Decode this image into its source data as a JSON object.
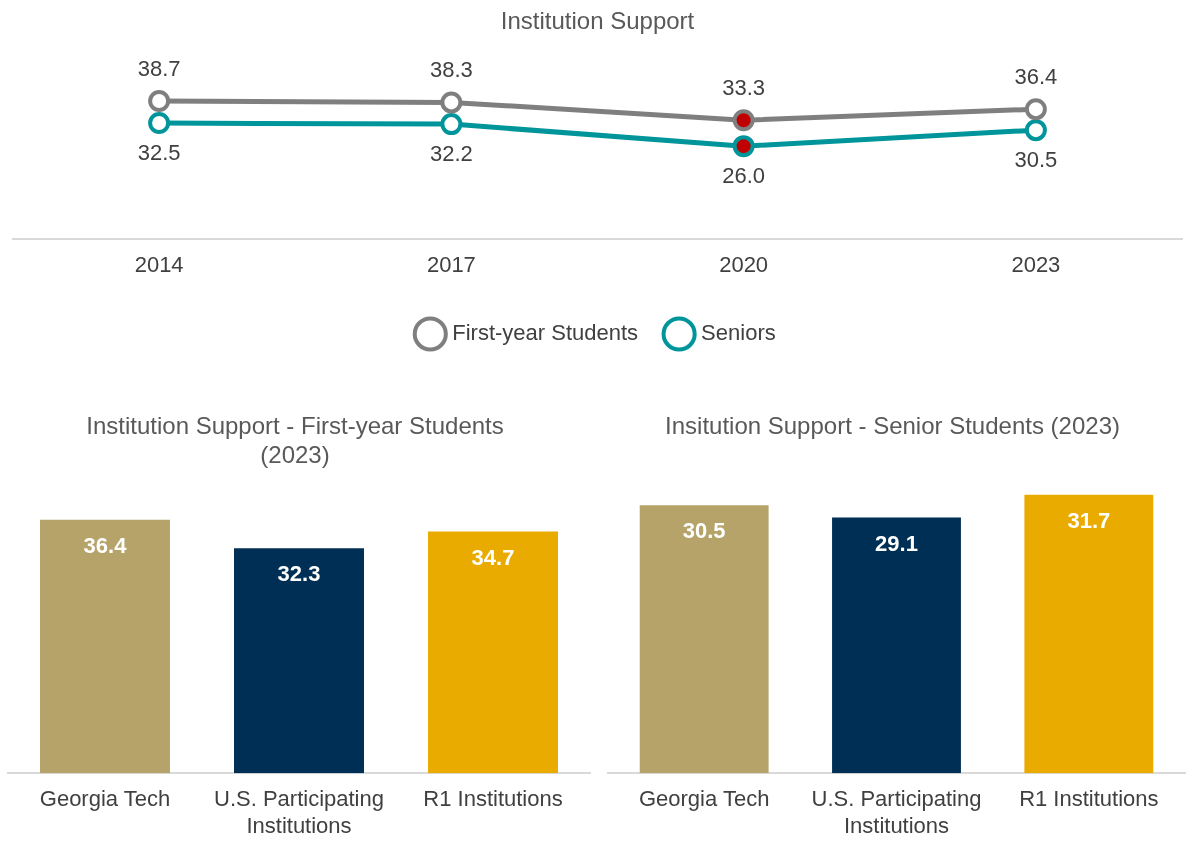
{
  "chart_data": [
    {
      "type": "line",
      "title": "Institution Support",
      "categories": [
        "2014",
        "2017",
        "2020",
        "2023"
      ],
      "series": [
        {
          "name": "First-year Students",
          "color": "#7f7f7f",
          "values": [
            38.7,
            38.3,
            33.3,
            36.4
          ],
          "value_labels": [
            "38.7",
            "38.3",
            "33.3",
            "36.4"
          ],
          "colors": [
            "#ffffff",
            "#ffffff",
            "#c00000",
            "#ffffff"
          ]
        },
        {
          "name": "Seniors",
          "color": "#00959a",
          "values": [
            32.5,
            32.2,
            26.0,
            30.5
          ],
          "value_labels": [
            "32.5",
            "32.2",
            "26.0",
            "30.5"
          ],
          "colors": [
            "#ffffff",
            "#ffffff",
            "#c00000",
            "#ffffff"
          ]
        }
      ],
      "tick_labels": "x",
      "grid": false,
      "legend": "bottom",
      "marker": "circle"
    },
    {
      "type": "bar",
      "title": "Institution Support - First-year Students (2023)",
      "categories": [
        "Georgia Tech",
        "U.S. Participating Institutions",
        "R1 Institutions"
      ],
      "values": [
        36.4,
        32.3,
        34.7
      ],
      "value_labels": [
        "36.4",
        "32.3",
        "34.7"
      ],
      "colors": [
        "#b5a36a",
        "#002f56",
        "#eaab00"
      ],
      "tick_labels": "x",
      "grid": false,
      "legend": false
    },
    {
      "type": "bar",
      "title": "Insitution Support - Senior Students (2023)",
      "categories": [
        "Georgia Tech",
        "U.S. Participating Institutions",
        "R1 Institutions"
      ],
      "values": [
        30.5,
        29.1,
        31.7
      ],
      "value_labels": [
        "30.5",
        "29.1",
        "31.7"
      ],
      "colors": [
        "#b5a36a",
        "#002f56",
        "#eaab00"
      ],
      "tick_labels": "x",
      "grid": false,
      "legend": false
    }
  ]
}
